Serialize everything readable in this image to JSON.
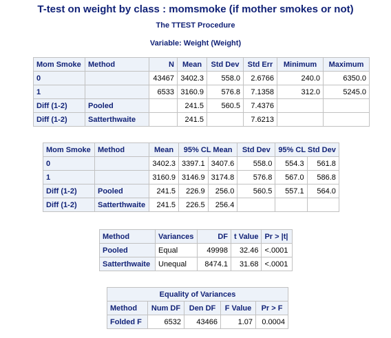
{
  "titles": {
    "main": "T-test on weight by class : momsmoke (if mother smokes or not)",
    "procedure": "The TTEST Procedure",
    "variable": "Variable: Weight (Weight)"
  },
  "stats_table": {
    "headers": [
      "Mom Smoke",
      "Method",
      "N",
      "Mean",
      "Std Dev",
      "Std Err",
      "Minimum",
      "Maximum"
    ],
    "rows": [
      {
        "group": "0",
        "method": "",
        "n": "43467",
        "mean": "3402.3",
        "std_dev": "558.0",
        "std_err": "2.6766",
        "min": "240.0",
        "max": "6350.0"
      },
      {
        "group": "1",
        "method": "",
        "n": "6533",
        "mean": "3160.9",
        "std_dev": "576.8",
        "std_err": "7.1358",
        "min": "312.0",
        "max": "5245.0"
      },
      {
        "group": "Diff (1-2)",
        "method": "Pooled",
        "n": "",
        "mean": "241.5",
        "std_dev": "560.5",
        "std_err": "7.4376",
        "min": "",
        "max": ""
      },
      {
        "group": "Diff (1-2)",
        "method": "Satterthwaite",
        "n": "",
        "mean": "241.5",
        "std_dev": "",
        "std_err": "7.6213",
        "min": "",
        "max": ""
      }
    ]
  },
  "cl_table": {
    "headers": [
      "Mom Smoke",
      "Method",
      "Mean",
      "95% CL Mean",
      "Std Dev",
      "95% CL Std Dev"
    ],
    "rows": [
      {
        "group": "0",
        "method": "",
        "mean": "3402.3",
        "cl_mean_lo": "3397.1",
        "cl_mean_hi": "3407.6",
        "std_dev": "558.0",
        "cl_sd_lo": "554.3",
        "cl_sd_hi": "561.8"
      },
      {
        "group": "1",
        "method": "",
        "mean": "3160.9",
        "cl_mean_lo": "3146.9",
        "cl_mean_hi": "3174.8",
        "std_dev": "576.8",
        "cl_sd_lo": "567.0",
        "cl_sd_hi": "586.8"
      },
      {
        "group": "Diff (1-2)",
        "method": "Pooled",
        "mean": "241.5",
        "cl_mean_lo": "226.9",
        "cl_mean_hi": "256.0",
        "std_dev": "560.5",
        "cl_sd_lo": "557.1",
        "cl_sd_hi": "564.0"
      },
      {
        "group": "Diff (1-2)",
        "method": "Satterthwaite",
        "mean": "241.5",
        "cl_mean_lo": "226.5",
        "cl_mean_hi": "256.4",
        "std_dev": "",
        "cl_sd_lo": "",
        "cl_sd_hi": ""
      }
    ]
  },
  "ttest_table": {
    "headers": [
      "Method",
      "Variances",
      "DF",
      "t Value",
      "Pr > |t|"
    ],
    "rows": [
      {
        "method": "Pooled",
        "variances": "Equal",
        "df": "49998",
        "t": "32.46",
        "p": "<.0001"
      },
      {
        "method": "Satterthwaite",
        "variances": "Unequal",
        "df": "8474.1",
        "t": "31.68",
        "p": "<.0001"
      }
    ]
  },
  "equality_table": {
    "caption": "Equality of Variances",
    "headers": [
      "Method",
      "Num DF",
      "Den DF",
      "F Value",
      "Pr > F"
    ],
    "rows": [
      {
        "method": "Folded F",
        "num_df": "6532",
        "den_df": "43466",
        "f": "1.07",
        "p": "0.0004"
      }
    ]
  }
}
